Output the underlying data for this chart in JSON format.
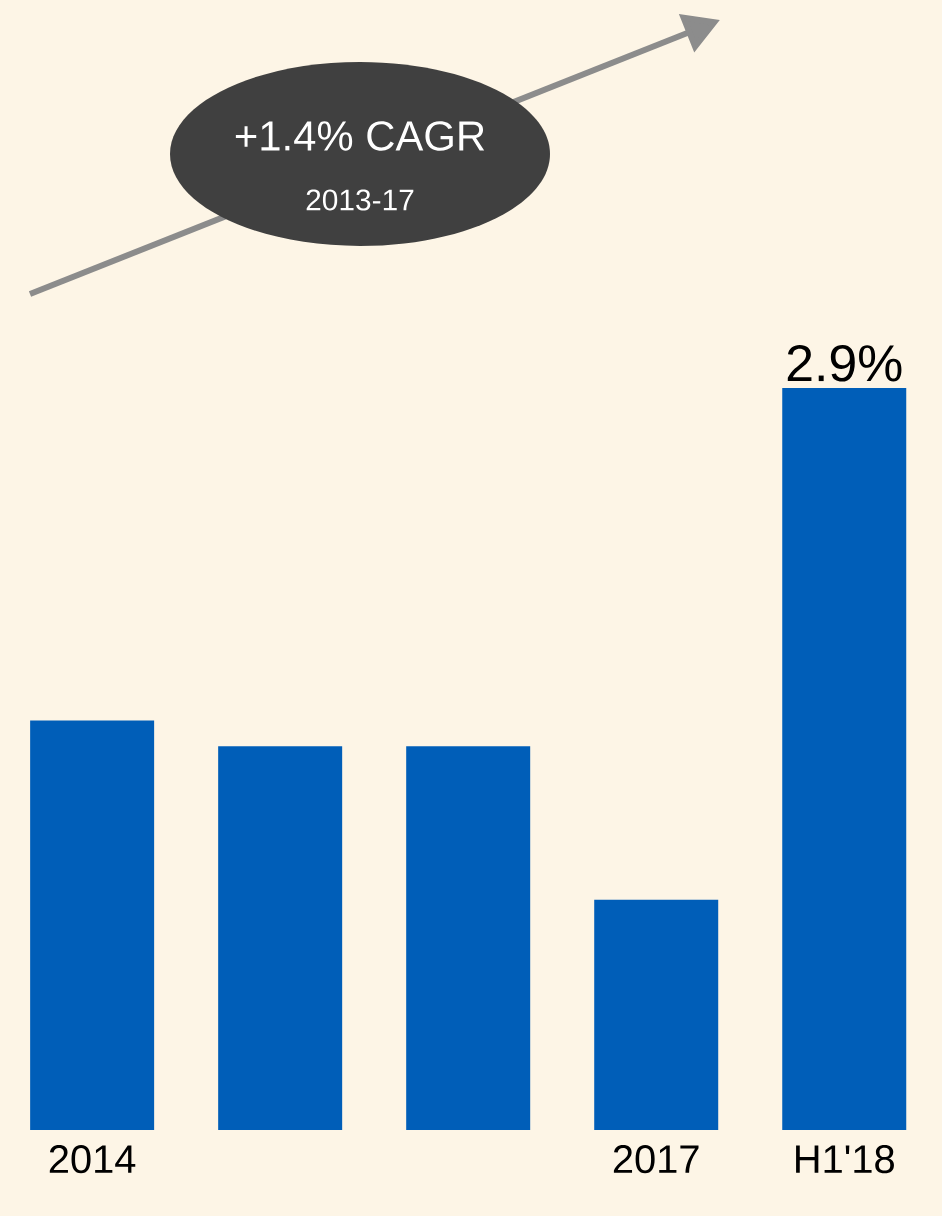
{
  "chart_data": {
    "type": "bar",
    "categories": [
      "2014",
      null,
      null,
      "2017",
      "H1'18"
    ],
    "values": [
      1.6,
      1.5,
      1.5,
      0.9,
      2.9
    ],
    "color": "#005eb8",
    "value_labels": [
      null,
      null,
      null,
      null,
      "2.9%"
    ],
    "annotations": [
      "+1.4% CAGR",
      "2013-17"
    ]
  }
}
